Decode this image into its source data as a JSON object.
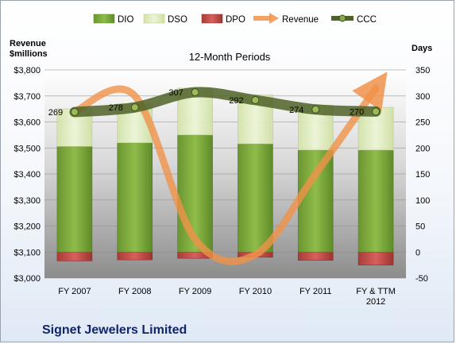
{
  "chart_data": {
    "type": "bar",
    "title": "12-Month Periods",
    "subtitle": "Signet Jewelers Limited",
    "left_axis_label_line1": "Revenue",
    "left_axis_label_line2": "$millions",
    "right_axis_label": "Days",
    "categories": [
      "FY 2007",
      "FY 2008",
      "FY 2009",
      "FY 2010",
      "FY 2011",
      "FY & TTM|2012"
    ],
    "ylim_left": [
      3000,
      3800
    ],
    "yticks_left": [
      "$3,000",
      "$3,100",
      "$3,200",
      "$3,300",
      "$3,400",
      "$3,500",
      "$3,600",
      "$3,700",
      "$3,800"
    ],
    "ylim_right": [
      -50,
      350
    ],
    "yticks_right": [
      "-50",
      "0",
      "50",
      "100",
      "150",
      "200",
      "250",
      "300",
      "350"
    ],
    "legend_position": "top",
    "series": [
      {
        "name": "DIO",
        "axis": "right",
        "kind": "stacked-bar",
        "color": "#7aa53a",
        "values": [
          203,
          210,
          225,
          208,
          196,
          196
        ]
      },
      {
        "name": "DSO",
        "axis": "right",
        "kind": "stacked-bar",
        "color": "#dcebb8",
        "values": [
          72,
          75,
          90,
          94,
          86,
          82
        ]
      },
      {
        "name": "DPO",
        "axis": "right",
        "kind": "bar-below-zero",
        "color": "#c0504d",
        "values": [
          -17,
          -15,
          -12,
          -10,
          -16,
          -25
        ]
      },
      {
        "name": "Revenue",
        "axis": "left",
        "kind": "line",
        "color": "#f0924a",
        "values": [
          3640,
          3700,
          3150,
          3090,
          3400,
          3730
        ]
      },
      {
        "name": "CCC",
        "axis": "right",
        "kind": "line",
        "color": "#4f6228",
        "values": [
          269,
          278,
          307,
          292,
          274,
          270
        ],
        "labels": [
          "269",
          "278",
          "307",
          "292",
          "274",
          "270"
        ]
      }
    ]
  }
}
